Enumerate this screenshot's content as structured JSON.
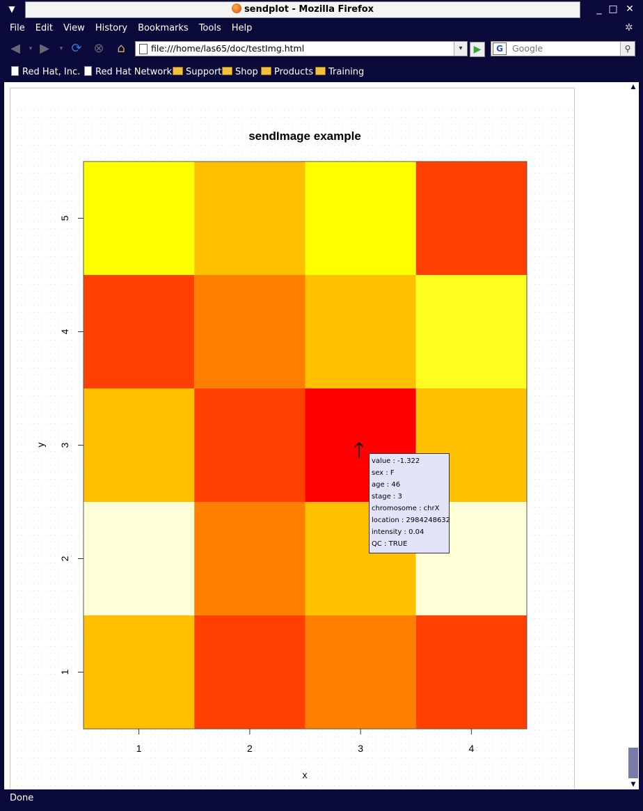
{
  "window": {
    "title": "sendplot - Mozilla Firefox",
    "menu_glyph": "▼",
    "minimize_glyph": "_",
    "maximize_glyph": "□",
    "close_glyph": "✕"
  },
  "menu": {
    "items": [
      "File",
      "Edit",
      "View",
      "History",
      "Bookmarks",
      "Tools",
      "Help"
    ]
  },
  "nav": {
    "url": "file:///home/las65/doc/testImg.html",
    "search_placeholder": "Google",
    "search_engine_letter": "G"
  },
  "bookmarks": [
    {
      "label": "Red Hat, Inc.",
      "icon": "page-icon"
    },
    {
      "label": "Red Hat Network",
      "icon": "page-icon"
    },
    {
      "label": "Support",
      "icon": "folder-icon"
    },
    {
      "label": "Shop",
      "icon": "folder-icon"
    },
    {
      "label": "Products",
      "icon": "folder-icon"
    },
    {
      "label": "Training",
      "icon": "folder-icon"
    }
  ],
  "status": {
    "text": "Done"
  },
  "chart_data": {
    "type": "heatmap",
    "title": "sendImage example",
    "xlabel": "x",
    "ylabel": "y",
    "x": [
      1,
      2,
      3,
      4
    ],
    "y": [
      1,
      2,
      3,
      4,
      5
    ],
    "cell_colors": [
      [
        "#ffc000",
        "#ff4000",
        "#ff8000",
        "#ff4000"
      ],
      [
        "#ffffd8",
        "#ff8000",
        "#ffc000",
        "#ffffd8"
      ],
      [
        "#ffc000",
        "#ff4000",
        "#ff0000",
        "#ffc000"
      ],
      [
        "#ff4000",
        "#ff8000",
        "#ffc000",
        "#ffff20"
      ],
      [
        "#ffff00",
        "#ffc000",
        "#ffff00",
        "#ff4000"
      ]
    ],
    "xlim": [
      0.5,
      4.5
    ],
    "ylim": [
      0.5,
      5.5
    ]
  },
  "tooltip": {
    "lines": [
      "value  : -1.322",
      "sex  : F",
      "age  : 46",
      "stage  : 3",
      "chromosome  : chrX",
      "location  : 2984248632",
      "intensity  : 0.04",
      "QC  : TRUE"
    ]
  }
}
